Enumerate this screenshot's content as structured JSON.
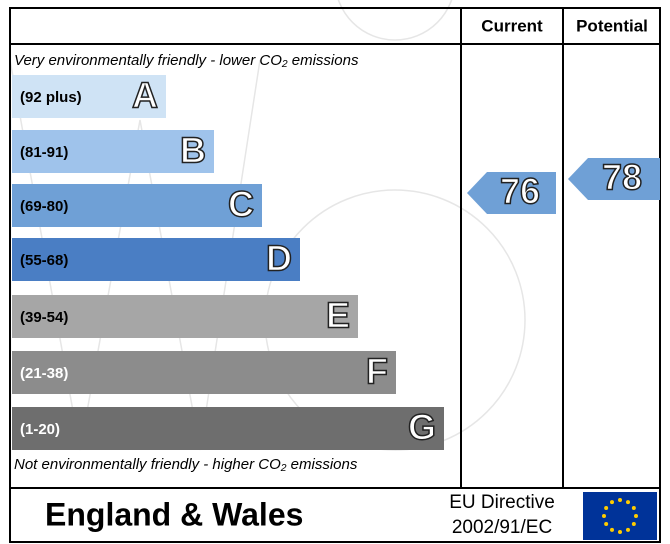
{
  "header": {
    "current": "Current",
    "potential": "Potential"
  },
  "top_note": "Very environmentally friendly - lower  CO₂ emissions",
  "bands": [
    {
      "range": "(92 plus)",
      "letter": "A"
    },
    {
      "range": "(81-91)",
      "letter": "B"
    },
    {
      "range": "(69-80)",
      "letter": "C"
    },
    {
      "range": "(55-68)",
      "letter": "D"
    },
    {
      "range": "(39-54)",
      "letter": "E"
    },
    {
      "range": "(21-38)",
      "letter": "F"
    },
    {
      "range": "(1-20)",
      "letter": "G"
    }
  ],
  "bottom_note": "Not environmentally friendly - higher  CO₂ emissions",
  "current": {
    "value": 76
  },
  "potential": {
    "value": 78
  },
  "footer": {
    "region": "England & Wales",
    "directive_line1": "EU Directive",
    "directive_line2": "2002/91/EC"
  }
}
